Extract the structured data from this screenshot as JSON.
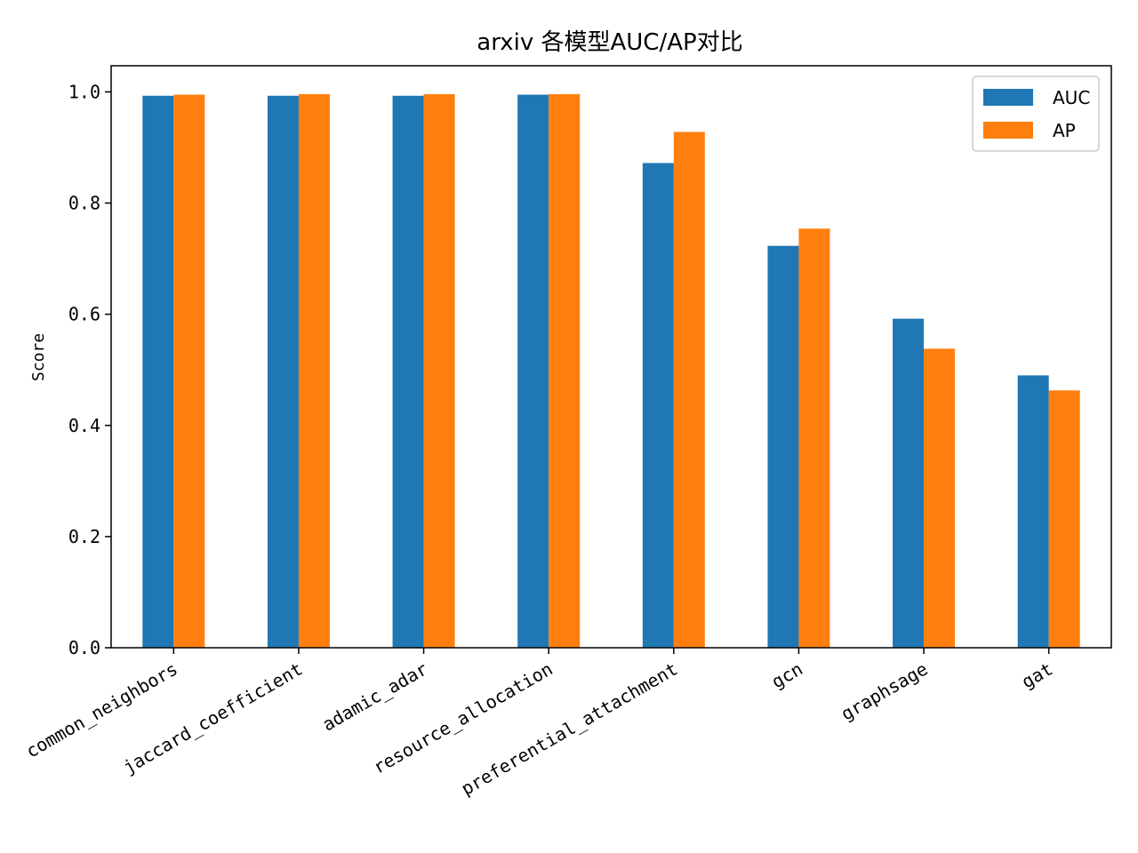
{
  "chart_data": {
    "type": "bar",
    "title": "arxiv 各模型AUC/AP对比",
    "xlabel": "",
    "ylabel": "Score",
    "ylim": [
      0,
      1.047
    ],
    "yticks": [
      "0.0",
      "0.2",
      "0.4",
      "0.6",
      "0.8",
      "1.0"
    ],
    "categories": [
      "common_neighbors",
      "jaccard_coefficient",
      "adamic_adar",
      "resource_allocation",
      "preferential_attachment",
      "gcn",
      "graphsage",
      "gat"
    ],
    "series": [
      {
        "name": "AUC",
        "color": "#1f77b4",
        "values": [
          0.993,
          0.993,
          0.993,
          0.995,
          0.872,
          0.723,
          0.592,
          0.49
        ]
      },
      {
        "name": "AP",
        "color": "#ff7f0e",
        "values": [
          0.995,
          0.996,
          0.996,
          0.996,
          0.928,
          0.754,
          0.538,
          0.463
        ]
      }
    ],
    "legend_position": "top-right",
    "grid": false
  }
}
